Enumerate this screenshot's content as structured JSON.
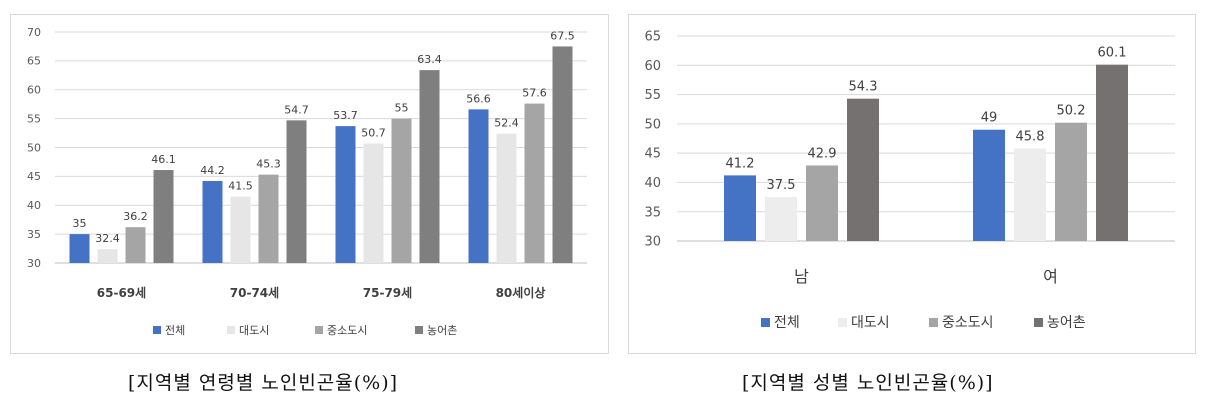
{
  "chart_data": [
    {
      "type": "bar",
      "categories": [
        "65-69세",
        "70-74세",
        "75-79세",
        "80세이상"
      ],
      "series": [
        {
          "name": "전체",
          "values": [
            35,
            44.2,
            53.7,
            56.6
          ],
          "labels": [
            "35",
            "44.2",
            "53.7",
            "56.6"
          ],
          "color": "#4472c4"
        },
        {
          "name": "대도시",
          "values": [
            32.4,
            41.5,
            50.7,
            52.4
          ],
          "labels": [
            "32.4",
            "41.5",
            "50.7",
            "52.4"
          ],
          "color": "#e7e6e6"
        },
        {
          "name": "중소도시",
          "values": [
            36.2,
            45.3,
            55,
            57.6
          ],
          "labels": [
            "36.2",
            "45.3",
            "55",
            "57.6"
          ],
          "color": "#a5a5a5"
        },
        {
          "name": "농어촌",
          "values": [
            46.1,
            54.7,
            63.4,
            67.5
          ],
          "labels": [
            "46.1",
            "54.7",
            "63.4",
            "67.5"
          ],
          "color": "#7f7f7f"
        }
      ],
      "yticks": [
        "30",
        "35",
        "40",
        "45",
        "50",
        "55",
        "60",
        "65",
        "70"
      ],
      "ylim": [
        30,
        70
      ],
      "grid": true,
      "legend_position": "bottom"
    },
    {
      "type": "bar",
      "categories": [
        "남",
        "여"
      ],
      "series": [
        {
          "name": "전체",
          "values": [
            41.2,
            49
          ],
          "labels": [
            "41.2",
            "49"
          ],
          "color": "#4472c4"
        },
        {
          "name": "대도시",
          "values": [
            37.5,
            45.8
          ],
          "labels": [
            "37.5",
            "45.8"
          ],
          "color": "#ededed"
        },
        {
          "name": "중소도시",
          "values": [
            42.9,
            50.2
          ],
          "labels": [
            "42.9",
            "50.2"
          ],
          "color": "#a5a5a5"
        },
        {
          "name": "농어촌",
          "values": [
            54.3,
            60.1
          ],
          "labels": [
            "54.3",
            "60.1"
          ],
          "color": "#767171"
        }
      ],
      "yticks": [
        "30",
        "35",
        "40",
        "45",
        "50",
        "55",
        "60",
        "65"
      ],
      "ylim": [
        30,
        65
      ],
      "grid": true,
      "legend_position": "bottom"
    }
  ],
  "captions": {
    "age": "[지역별 연령별 노인빈곤율(%)]",
    "sex": "[지역별 성별 노인빈곤율(%)]"
  }
}
